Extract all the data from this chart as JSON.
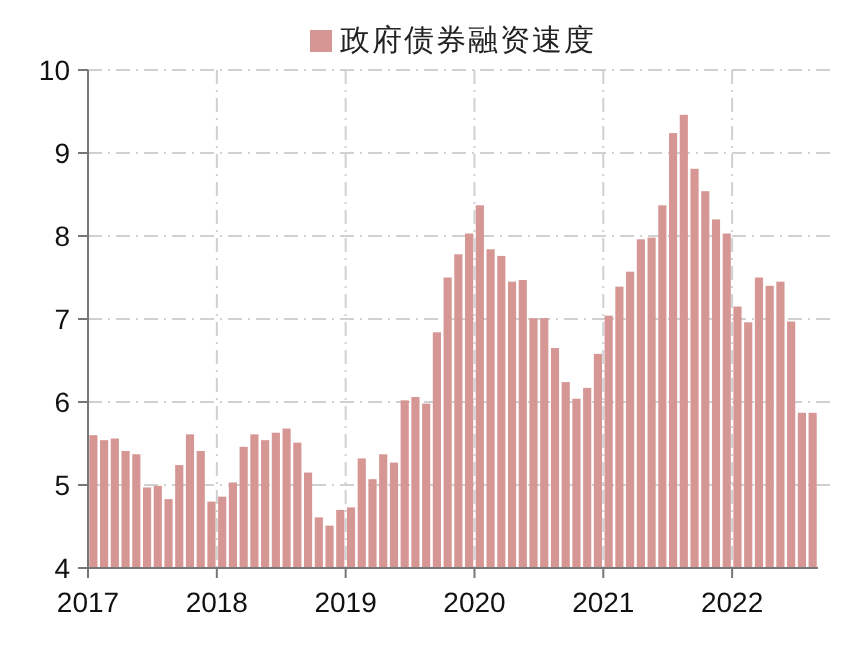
{
  "chart_data": {
    "type": "bar",
    "legend": "top",
    "grid": true,
    "ylim": [
      4,
      10
    ],
    "yticks": [
      4,
      5,
      6,
      7,
      8,
      9,
      10
    ],
    "xlim": [
      "2017-01",
      "2022-09"
    ],
    "xticks": [
      "2017",
      "2018",
      "2019",
      "2020",
      "2021",
      "2022"
    ],
    "x": [
      "2017-01-16",
      "2017-02-15",
      "2017-03-16",
      "2017-04-15",
      "2017-05-16",
      "2017-06-15",
      "2017-07-16",
      "2017-08-16",
      "2017-09-15",
      "2017-10-16",
      "2017-11-15",
      "2017-12-16",
      "2018-01-16",
      "2018-02-15",
      "2018-03-16",
      "2018-04-15",
      "2018-05-16",
      "2018-06-15",
      "2018-07-16",
      "2018-08-16",
      "2018-09-15",
      "2018-10-16",
      "2018-11-15",
      "2018-12-16",
      "2019-01-16",
      "2019-02-15",
      "2019-03-16",
      "2019-04-15",
      "2019-05-16",
      "2019-06-15",
      "2019-07-16",
      "2019-08-16",
      "2019-09-15",
      "2019-10-16",
      "2019-11-15",
      "2019-12-16",
      "2020-01-16",
      "2020-02-15",
      "2020-03-16",
      "2020-04-15",
      "2020-05-16",
      "2020-06-15",
      "2020-07-16",
      "2020-08-16",
      "2020-09-15",
      "2020-10-16",
      "2020-11-15",
      "2020-12-16",
      "2021-01-16",
      "2021-02-15",
      "2021-03-16",
      "2021-04-15",
      "2021-05-16",
      "2021-06-15",
      "2021-07-16",
      "2021-08-16",
      "2021-09-15",
      "2021-10-16",
      "2021-11-15",
      "2021-12-16",
      "2022-01-16",
      "2022-02-15",
      "2022-03-16",
      "2022-04-15",
      "2022-05-16",
      "2022-06-15",
      "2022-07-16",
      "2022-08-16"
    ],
    "series": [
      {
        "name": "政府债券融资速度",
        "color": "#d59694",
        "values": [
          5.6,
          5.54,
          5.56,
          5.41,
          5.37,
          4.97,
          4.99,
          4.83,
          5.24,
          5.61,
          5.41,
          4.8,
          4.86,
          5.03,
          5.46,
          5.61,
          5.54,
          5.63,
          5.68,
          5.51,
          5.15,
          4.61,
          4.51,
          4.7,
          4.73,
          5.32,
          5.07,
          5.37,
          5.27,
          6.02,
          6.06,
          5.98,
          6.84,
          7.5,
          7.78,
          8.03,
          8.37,
          7.84,
          7.76,
          7.45,
          7.47,
          7.01,
          7.01,
          6.65,
          6.24,
          6.04,
          6.17,
          6.58,
          7.04,
          7.39,
          7.57,
          7.96,
          7.98,
          8.37,
          9.24,
          9.46,
          8.81,
          8.54,
          8.2,
          8.03,
          7.15,
          6.96,
          7.5,
          7.4,
          7.45,
          6.97,
          5.87,
          5.87
        ]
      }
    ]
  }
}
